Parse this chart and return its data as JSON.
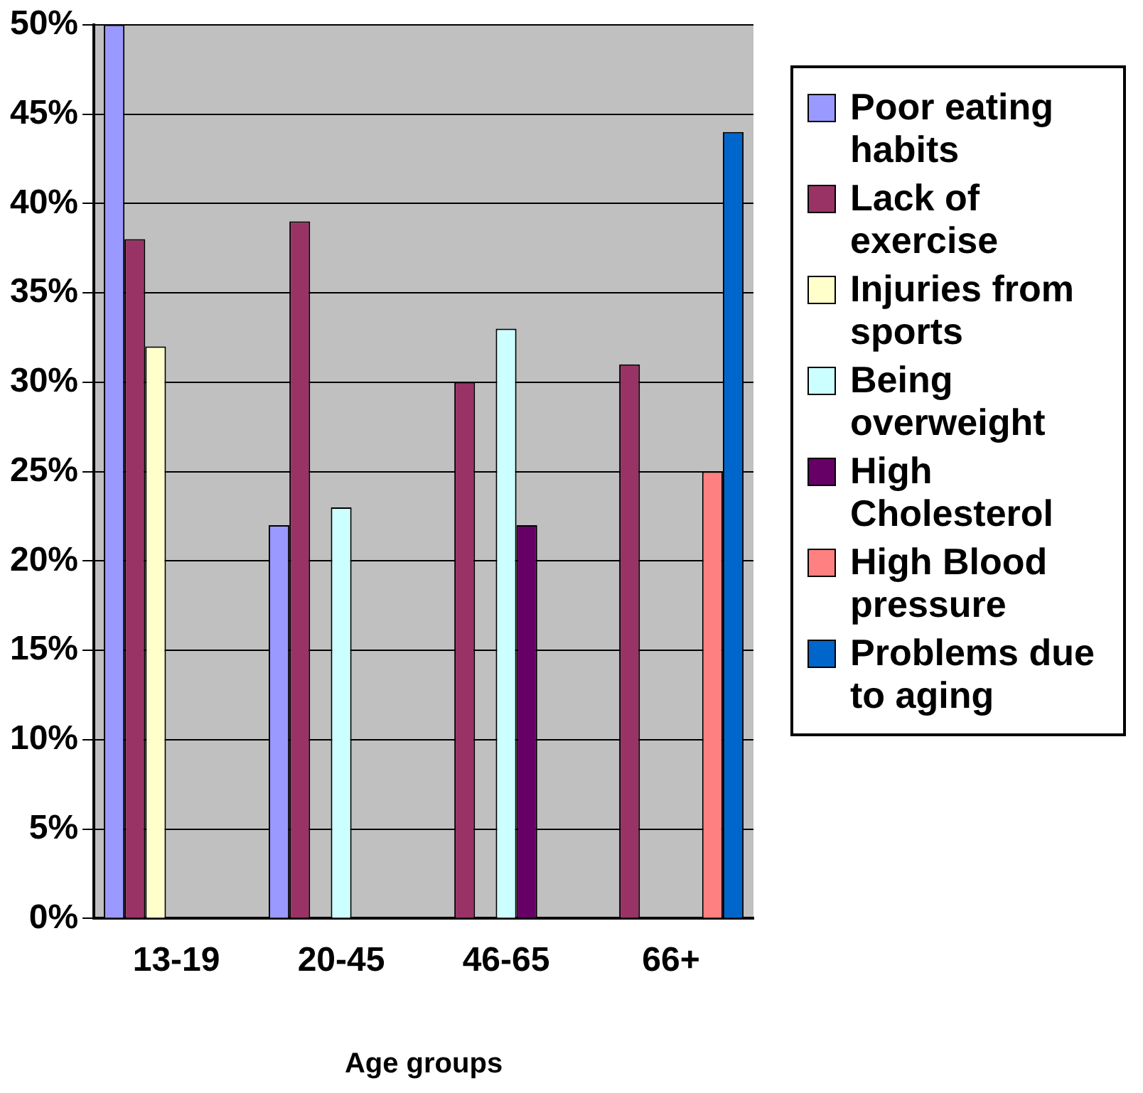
{
  "chart_data": {
    "type": "bar",
    "xlabel": "Age groups",
    "categories": [
      "13-19",
      "20-45",
      "46-65",
      "66+"
    ],
    "series": [
      {
        "name": "Poor eating habits",
        "color": "#9999ff",
        "values": [
          50,
          22,
          null,
          null
        ]
      },
      {
        "name": "Lack of exercise",
        "color": "#993366",
        "values": [
          38,
          39,
          30,
          31
        ]
      },
      {
        "name": "Injuries from sports",
        "color": "#ffffcc",
        "values": [
          32,
          null,
          null,
          null
        ]
      },
      {
        "name": "Being overweight",
        "color": "#ccffff",
        "values": [
          null,
          23,
          33,
          null
        ]
      },
      {
        "name": "High Cholesterol",
        "color": "#660066",
        "values": [
          null,
          null,
          22,
          null
        ]
      },
      {
        "name": "High Blood pressure",
        "color": "#ff8080",
        "values": [
          null,
          null,
          null,
          25
        ]
      },
      {
        "name": "Problems due to aging",
        "color": "#0066cc",
        "values": [
          null,
          null,
          null,
          44
        ]
      }
    ],
    "ylim": [
      0,
      50
    ],
    "yticks": [
      {
        "value": 0,
        "label": "0%"
      },
      {
        "value": 5,
        "label": "5%"
      },
      {
        "value": 10,
        "label": "10%"
      },
      {
        "value": 15,
        "label": "15%"
      },
      {
        "value": 20,
        "label": "20%"
      },
      {
        "value": 25,
        "label": "25%"
      },
      {
        "value": 30,
        "label": "30%"
      },
      {
        "value": 35,
        "label": "35%"
      },
      {
        "value": 40,
        "label": "40%"
      },
      {
        "value": 45,
        "label": "45%"
      },
      {
        "value": 50,
        "label": "50%"
      }
    ],
    "grid": "y",
    "legend": "right"
  }
}
